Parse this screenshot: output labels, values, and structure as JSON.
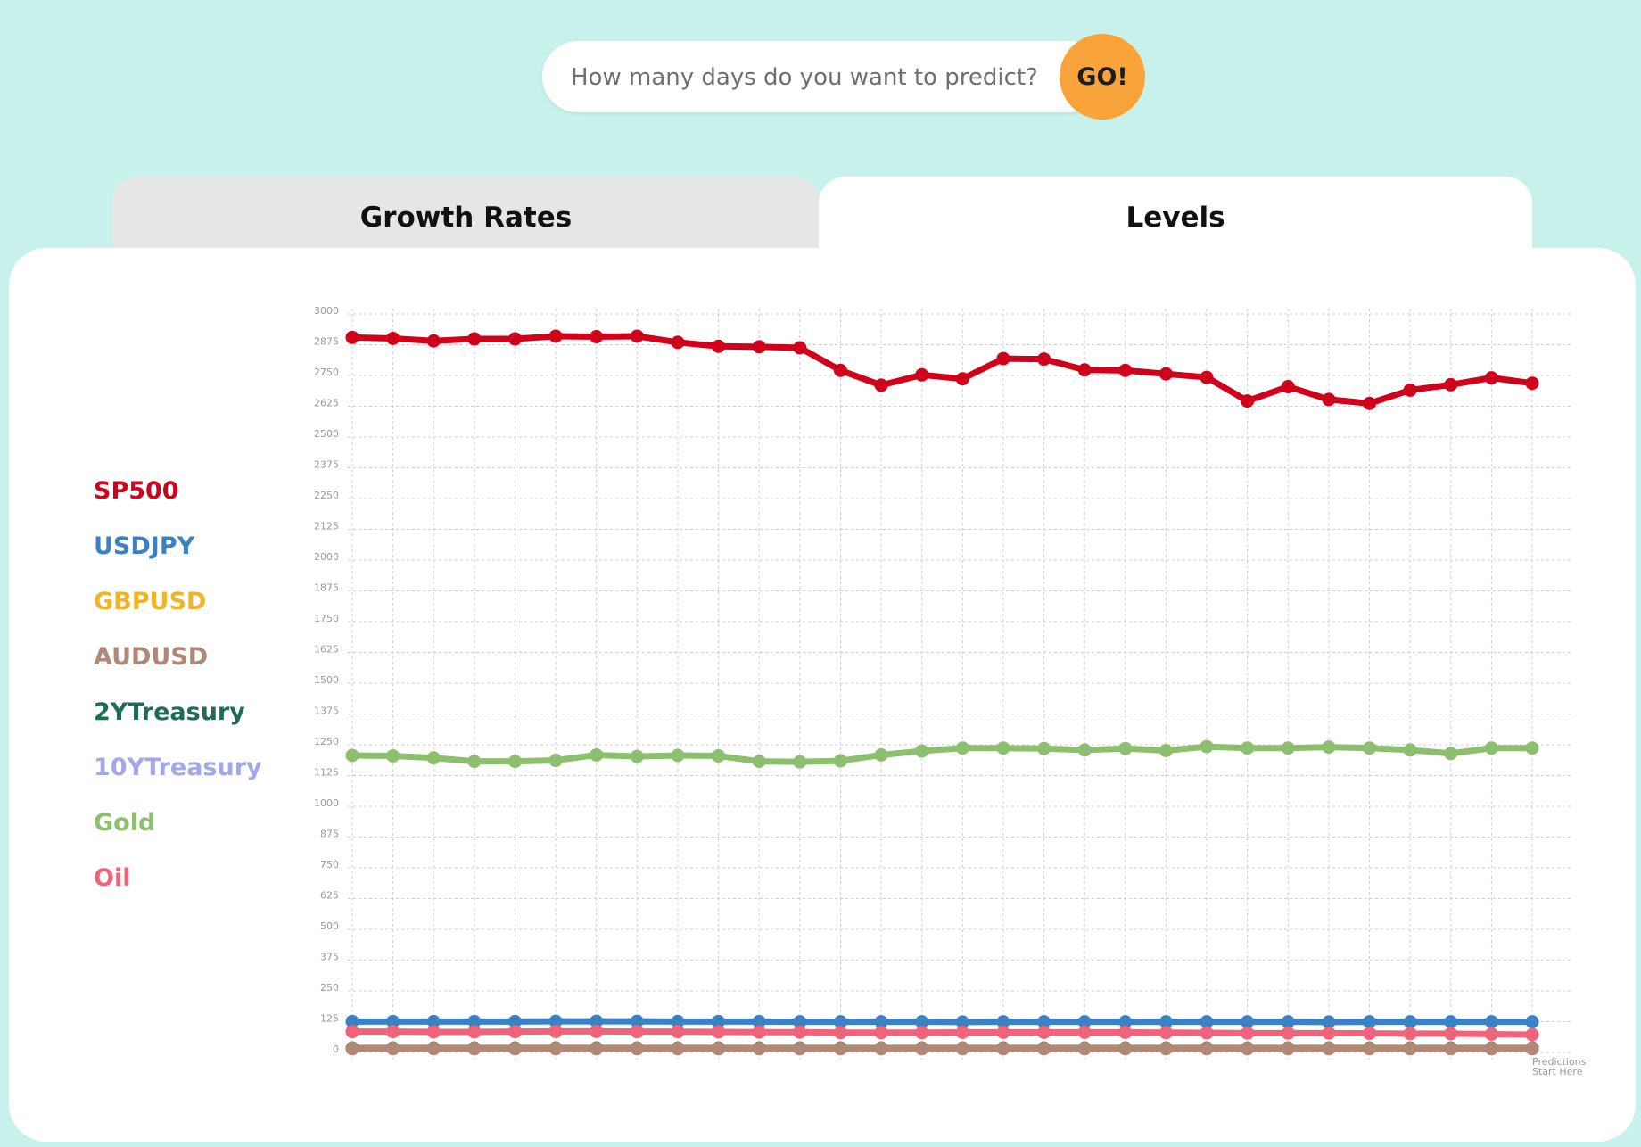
{
  "search": {
    "placeholder": "How many days do you want to predict?",
    "button_label": "GO!"
  },
  "tabs": [
    {
      "label": "Growth Rates",
      "active": false
    },
    {
      "label": "Levels",
      "active": true
    }
  ],
  "legend": [
    {
      "label": "SP500",
      "color": "#d0021b"
    },
    {
      "label": "USDJPY",
      "color": "#3b82c4"
    },
    {
      "label": "GBPUSD",
      "color": "#f0b429"
    },
    {
      "label": "AUDUSD",
      "color": "#b08878"
    },
    {
      "label": "2YTreasury",
      "color": "#1f6b5a"
    },
    {
      "label": "10YTreasury",
      "color": "#a3a8ec"
    },
    {
      "label": "Gold",
      "color": "#8cc06e"
    },
    {
      "label": "Oil",
      "color": "#f0647a"
    }
  ],
  "chart_data": {
    "type": "line",
    "x_count": 30,
    "ylim": [
      0,
      3000
    ],
    "yticks": [
      0,
      125,
      250,
      375,
      500,
      625,
      750,
      875,
      1000,
      1125,
      1250,
      1375,
      1500,
      1625,
      1750,
      1875,
      2000,
      2125,
      2250,
      2375,
      2500,
      2625,
      2750,
      2875,
      3000
    ],
    "grid": true,
    "annotation": "Predictions\nStart Here",
    "series": [
      {
        "name": "SP500",
        "color": "#d0021b",
        "values": [
          2890,
          2886,
          2876,
          2884,
          2884,
          2895,
          2893,
          2895,
          2870,
          2854,
          2852,
          2848,
          2756,
          2696,
          2738,
          2722,
          2804,
          2802,
          2758,
          2756,
          2742,
          2728,
          2632,
          2690,
          2638,
          2622,
          2676,
          2698,
          2726,
          2704
        ]
      },
      {
        "name": "Gold",
        "color": "#8cc06e",
        "values": [
          1192,
          1190,
          1182,
          1168,
          1168,
          1172,
          1194,
          1188,
          1192,
          1190,
          1168,
          1166,
          1170,
          1194,
          1210,
          1222,
          1222,
          1220,
          1214,
          1220,
          1212,
          1228,
          1222,
          1222,
          1226,
          1222,
          1214,
          1200,
          1222,
          1222
        ]
      },
      {
        "name": "USDJPY",
        "color": "#3b82c4",
        "values": [
          111,
          111,
          111,
          111,
          111,
          112,
          112,
          112,
          111,
          111,
          111,
          110,
          110,
          110,
          110,
          109,
          110,
          110,
          110,
          110,
          110,
          110,
          110,
          110,
          109,
          110,
          110,
          110,
          110,
          110
        ]
      },
      {
        "name": "Oil",
        "color": "#f0647a",
        "values": [
          70,
          70,
          69,
          69,
          70,
          71,
          71,
          70,
          70,
          69,
          68,
          68,
          66,
          66,
          66,
          67,
          67,
          67,
          67,
          67,
          66,
          65,
          64,
          64,
          64,
          63,
          62,
          62,
          60,
          58
        ]
      },
      {
        "name": "10YTreasury",
        "color": "#a3a8ec",
        "values": [
          3,
          3,
          3,
          3,
          3,
          3,
          3,
          3,
          3,
          3,
          3,
          3,
          3,
          3,
          3,
          3,
          3,
          3,
          3,
          3,
          3,
          3,
          3,
          3,
          3,
          3,
          3,
          3,
          3,
          3
        ]
      },
      {
        "name": "2YTreasury",
        "color": "#1f6b5a",
        "values": [
          3,
          3,
          3,
          3,
          3,
          3,
          3,
          3,
          3,
          3,
          3,
          3,
          3,
          3,
          3,
          3,
          3,
          3,
          3,
          3,
          3,
          3,
          3,
          3,
          3,
          3,
          3,
          3,
          3,
          3
        ]
      },
      {
        "name": "GBPUSD",
        "color": "#f0b429",
        "values": [
          1.3,
          1.3,
          1.3,
          1.3,
          1.3,
          1.3,
          1.3,
          1.3,
          1.3,
          1.3,
          1.3,
          1.3,
          1.3,
          1.3,
          1.3,
          1.3,
          1.3,
          1.3,
          1.3,
          1.3,
          1.3,
          1.3,
          1.3,
          1.3,
          1.3,
          1.3,
          1.3,
          1.3,
          1.3,
          1.3
        ]
      },
      {
        "name": "AUDUSD",
        "color": "#b08878",
        "values": [
          0.7,
          0.7,
          0.7,
          0.7,
          0.7,
          0.7,
          0.7,
          0.7,
          0.7,
          0.7,
          0.7,
          0.7,
          0.7,
          0.7,
          0.7,
          0.7,
          0.7,
          0.7,
          0.7,
          0.7,
          0.7,
          0.7,
          0.7,
          0.7,
          0.7,
          0.7,
          0.7,
          0.7,
          0.7,
          0.7
        ]
      }
    ]
  }
}
